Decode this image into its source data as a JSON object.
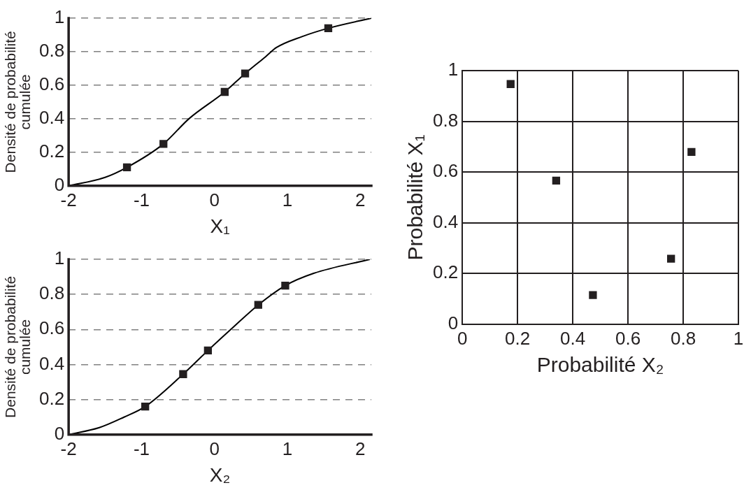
{
  "chart_data": [
    {
      "type": "line",
      "xlabel": "X₁",
      "ylabel": "Densité de probabilité cumulée",
      "xlim": [
        -2,
        2.15
      ],
      "ylim": [
        0,
        1
      ],
      "xticks": [
        -2,
        -1,
        0,
        1,
        2
      ],
      "yticks": [
        0,
        0.2,
        0.4,
        0.6,
        0.8,
        1
      ],
      "grid": "y",
      "legend": false,
      "series": [
        {
          "color": "#000000",
          "marker": "none",
          "x": [
            -2,
            -1.5,
            -1.2,
            -0.7,
            -0.35,
            0.14,
            0.42,
            0.7,
            0.85,
            1.2,
            1.56,
            2.15
          ],
          "values": [
            0,
            0.05,
            0.11,
            0.25,
            0.4,
            0.56,
            0.67,
            0.77,
            0.825,
            0.89,
            0.94,
            1
          ]
        },
        {
          "type": "scatter",
          "color": "#231f20",
          "marker": "square",
          "x": [
            -1.2,
            -0.7,
            0.14,
            0.42,
            1.56
          ],
          "values": [
            0.11,
            0.25,
            0.56,
            0.67,
            0.94
          ]
        }
      ]
    },
    {
      "type": "line",
      "xlabel": "X₂",
      "ylabel": "Densité de probabilité cumulée",
      "xlim": [
        -2,
        2.15
      ],
      "ylim": [
        0,
        1
      ],
      "xticks": [
        -2,
        -1,
        0,
        1,
        2
      ],
      "yticks": [
        0,
        0.2,
        0.4,
        0.6,
        0.8,
        1
      ],
      "grid": "y",
      "legend": false,
      "series": [
        {
          "color": "#000000",
          "marker": "none",
          "x": [
            -2,
            -1.58,
            -1.24,
            -0.95,
            -0.43,
            -0.09,
            0.25,
            0.6,
            0.97,
            1.36,
            2.13
          ],
          "values": [
            0,
            0.04,
            0.1,
            0.16,
            0.345,
            0.48,
            0.61,
            0.74,
            0.85,
            0.92,
            1
          ]
        },
        {
          "type": "scatter",
          "color": "#231f20",
          "marker": "square",
          "x": [
            -0.95,
            -0.43,
            -0.09,
            0.6,
            0.97
          ],
          "values": [
            0.16,
            0.345,
            0.48,
            0.74,
            0.85
          ]
        }
      ]
    },
    {
      "type": "scatter",
      "xlabel": "Probabilité X₂",
      "ylabel": "Probabilité X₁",
      "xlim": [
        0,
        1
      ],
      "ylim": [
        0,
        1
      ],
      "xticks": [
        0,
        0.2,
        0.4,
        0.6,
        0.8,
        1
      ],
      "yticks": [
        0,
        0.2,
        0.4,
        0.6,
        0.8,
        1
      ],
      "grid": true,
      "legend": false,
      "marker": "square",
      "x": [
        0.175,
        0.34,
        0.473,
        0.756,
        0.83
      ],
      "series": [
        {
          "color": "#231f20",
          "values": [
            0.947,
            0.566,
            0.115,
            0.258,
            0.679
          ]
        }
      ]
    }
  ]
}
